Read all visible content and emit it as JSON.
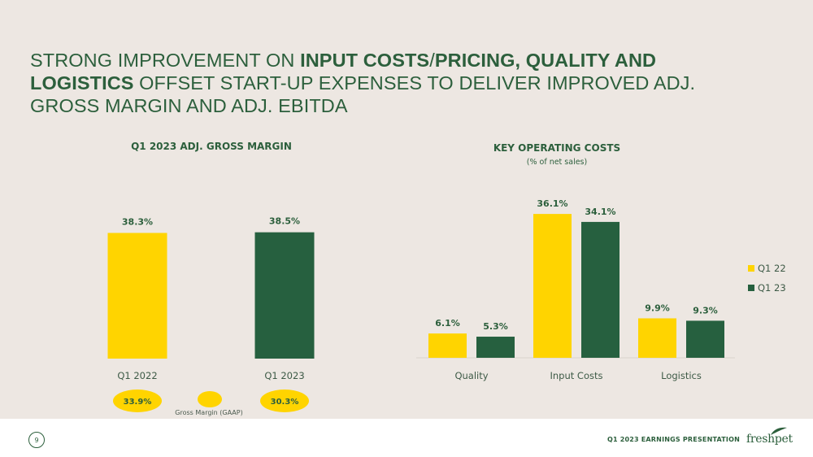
{
  "slide": {
    "title_parts": [
      {
        "text": "STRONG IMPROVEMENT ON ",
        "bold": false
      },
      {
        "text": "INPUT COSTS",
        "bold": true
      },
      {
        "text": "/",
        "bold": false
      },
      {
        "text": "PRICING, QUALITY AND LOGISTICS",
        "bold": true
      },
      {
        "text": " OFFSET START-UP EXPENSES TO DELIVER IMPROVED ADJ. GROSS MARGIN AND ADJ. EBITDA",
        "bold": false
      }
    ],
    "page_number": "9",
    "footer": "Q1 2023 EARNINGS PRESENTATION",
    "logo_text": "freshpet"
  },
  "colors": {
    "q1_22": "#ffd400",
    "q1_23": "#26603f",
    "text_green": "#2c5f3c",
    "background": "#ede7e2"
  },
  "chart_data": [
    {
      "type": "bar",
      "title": "Q1 2023 ADJ. GROSS MARGIN",
      "categories": [
        "Q1 2022",
        "Q1 2023"
      ],
      "values": [
        38.3,
        38.5
      ],
      "value_labels": [
        "38.3%",
        "38.5%"
      ],
      "bar_colors": [
        "#ffd400",
        "#26603f"
      ],
      "gaap": {
        "label": "Gross Margin (GAAP)",
        "values": [
          "33.9%",
          "30.3%"
        ]
      }
    },
    {
      "type": "bar",
      "title": "KEY OPERATING COSTS",
      "subtitle": "(% of net sales)",
      "categories": [
        "Quality",
        "Input Costs",
        "Logistics"
      ],
      "series": [
        {
          "name": "Q1 22",
          "values": [
            6.1,
            36.1,
            9.9
          ],
          "labels": [
            "6.1%",
            "36.1%",
            "9.9%"
          ],
          "color": "#ffd400"
        },
        {
          "name": "Q1 23",
          "values": [
            5.3,
            34.1,
            9.3
          ],
          "labels": [
            "5.3%",
            "34.1%",
            "9.3%"
          ],
          "color": "#26603f"
        }
      ],
      "legend_position": "right"
    }
  ]
}
